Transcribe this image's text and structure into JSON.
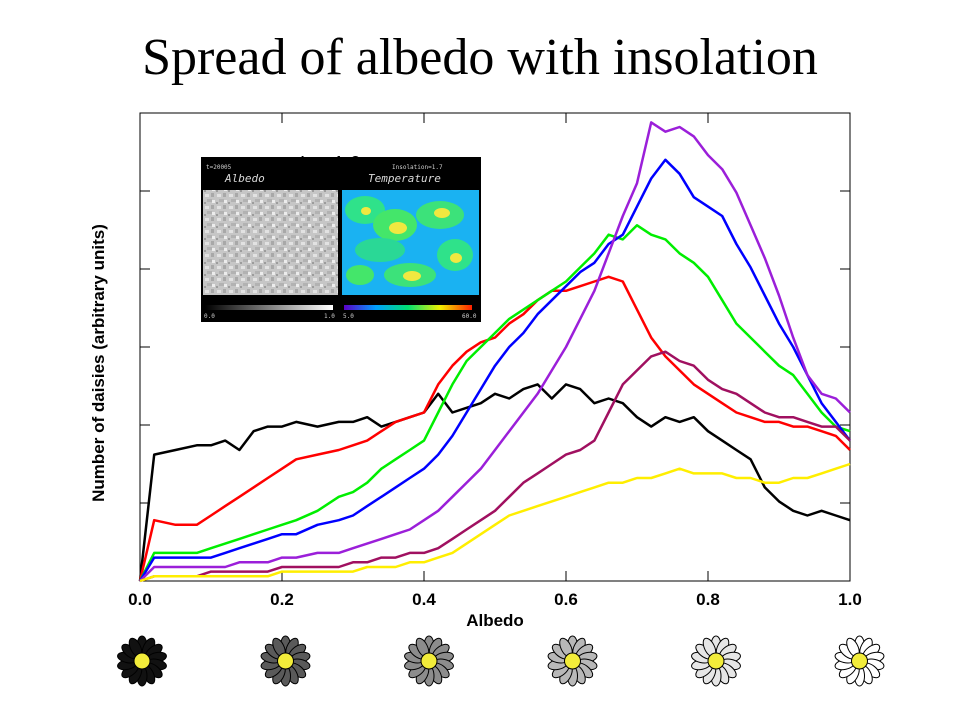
{
  "slide": {
    "title": "Spread of albedo with insolation"
  },
  "inset": {
    "left_top_label": "t=20005",
    "left_title": "Albedo",
    "right_top_label": "Insolation=1.7",
    "right_title": "Temperature",
    "left_scale": [
      "0.0",
      "1.0"
    ],
    "right_scale": [
      "5.0",
      "60.0"
    ],
    "behind_text": "L = 1.0"
  },
  "daisies": {
    "count": 6,
    "petal_colors": [
      "#111111",
      "#5a5a5a",
      "#8c8c8c",
      "#b8b8b8",
      "#e6e6e6",
      "#ffffff"
    ],
    "center_color": "#f2ec3a"
  },
  "chart_data": {
    "type": "line",
    "title": "",
    "xlabel": "Albedo",
    "ylabel": "Number of daisies (arbitrary units)",
    "xlim": [
      0.0,
      1.0
    ],
    "ylim": [
      0,
      100
    ],
    "xticks": [
      "0.0",
      "0.2",
      "0.4",
      "0.6",
      "0.8",
      "1.0"
    ],
    "grid": false,
    "series": [
      {
        "color": "#000000",
        "x": [
          0,
          0.02,
          0.05,
          0.08,
          0.1,
          0.12,
          0.14,
          0.16,
          0.18,
          0.2,
          0.22,
          0.25,
          0.28,
          0.3,
          0.32,
          0.34,
          0.36,
          0.38,
          0.4,
          0.42,
          0.44,
          0.46,
          0.48,
          0.5,
          0.52,
          0.54,
          0.56,
          0.58,
          0.6,
          0.62,
          0.64,
          0.66,
          0.68,
          0.7,
          0.72,
          0.74,
          0.76,
          0.78,
          0.8,
          0.82,
          0.84,
          0.86,
          0.88,
          0.9,
          0.92,
          0.94,
          0.96,
          0.98,
          1.0
        ],
        "y": [
          0,
          27,
          28,
          29,
          29,
          30,
          28,
          32,
          33,
          33,
          34,
          33,
          34,
          34,
          35,
          33,
          34,
          35,
          36,
          40,
          36,
          37,
          38,
          40,
          39,
          41,
          42,
          39,
          42,
          41,
          38,
          39,
          38,
          35,
          33,
          35,
          34,
          35,
          32,
          30,
          28,
          26,
          20,
          17,
          15,
          14,
          15,
          14,
          13
        ]
      },
      {
        "color": "#ff0000",
        "x": [
          0,
          0.02,
          0.05,
          0.08,
          0.1,
          0.12,
          0.14,
          0.16,
          0.18,
          0.2,
          0.22,
          0.25,
          0.28,
          0.3,
          0.32,
          0.34,
          0.36,
          0.38,
          0.4,
          0.42,
          0.44,
          0.46,
          0.48,
          0.5,
          0.52,
          0.54,
          0.56,
          0.58,
          0.6,
          0.62,
          0.64,
          0.66,
          0.68,
          0.7,
          0.72,
          0.74,
          0.76,
          0.78,
          0.8,
          0.82,
          0.84,
          0.86,
          0.88,
          0.9,
          0.92,
          0.94,
          0.96,
          0.98,
          1.0
        ],
        "y": [
          0,
          13,
          12,
          12,
          14,
          16,
          18,
          20,
          22,
          24,
          26,
          27,
          28,
          29,
          30,
          32,
          34,
          35,
          36,
          42,
          46,
          49,
          51,
          52,
          55,
          57,
          60,
          62,
          62,
          63,
          64,
          65,
          64,
          58,
          52,
          48,
          45,
          42,
          40,
          38,
          36,
          35,
          34,
          34,
          33,
          33,
          32,
          31,
          28
        ]
      },
      {
        "color": "#00ee00",
        "x": [
          0,
          0.02,
          0.05,
          0.08,
          0.1,
          0.12,
          0.14,
          0.16,
          0.18,
          0.2,
          0.22,
          0.25,
          0.28,
          0.3,
          0.32,
          0.34,
          0.36,
          0.38,
          0.4,
          0.42,
          0.44,
          0.46,
          0.48,
          0.5,
          0.52,
          0.54,
          0.56,
          0.58,
          0.6,
          0.62,
          0.64,
          0.66,
          0.68,
          0.7,
          0.72,
          0.74,
          0.76,
          0.78,
          0.8,
          0.82,
          0.84,
          0.86,
          0.88,
          0.9,
          0.92,
          0.94,
          0.96,
          0.98,
          1.0
        ],
        "y": [
          0,
          6,
          6,
          6,
          7,
          8,
          9,
          10,
          11,
          12,
          13,
          15,
          18,
          19,
          21,
          24,
          26,
          28,
          30,
          36,
          42,
          47,
          50,
          53,
          56,
          58,
          60,
          62,
          64,
          67,
          70,
          74,
          73,
          76,
          74,
          73,
          70,
          68,
          65,
          60,
          55,
          52,
          49,
          46,
          44,
          40,
          36,
          33,
          32
        ]
      },
      {
        "color": "#0000ff",
        "x": [
          0,
          0.02,
          0.05,
          0.08,
          0.1,
          0.12,
          0.14,
          0.16,
          0.18,
          0.2,
          0.22,
          0.25,
          0.28,
          0.3,
          0.32,
          0.34,
          0.36,
          0.38,
          0.4,
          0.42,
          0.44,
          0.46,
          0.48,
          0.5,
          0.52,
          0.54,
          0.56,
          0.58,
          0.6,
          0.62,
          0.64,
          0.66,
          0.68,
          0.7,
          0.72,
          0.74,
          0.76,
          0.78,
          0.8,
          0.82,
          0.84,
          0.86,
          0.88,
          0.9,
          0.92,
          0.94,
          0.96,
          0.98,
          1.0
        ],
        "y": [
          0,
          5,
          5,
          5,
          5,
          6,
          7,
          8,
          9,
          10,
          10,
          12,
          13,
          14,
          16,
          18,
          20,
          22,
          24,
          27,
          31,
          36,
          41,
          46,
          50,
          53,
          57,
          60,
          63,
          66,
          68,
          72,
          74,
          80,
          86,
          90,
          87,
          82,
          80,
          78,
          72,
          67,
          61,
          55,
          50,
          44,
          38,
          34,
          30
        ]
      },
      {
        "color": "#9b1fd9",
        "x": [
          0,
          0.02,
          0.05,
          0.08,
          0.1,
          0.12,
          0.14,
          0.16,
          0.18,
          0.2,
          0.22,
          0.25,
          0.28,
          0.3,
          0.32,
          0.34,
          0.36,
          0.38,
          0.4,
          0.42,
          0.44,
          0.46,
          0.48,
          0.5,
          0.52,
          0.54,
          0.56,
          0.58,
          0.6,
          0.62,
          0.64,
          0.66,
          0.68,
          0.7,
          0.72,
          0.74,
          0.76,
          0.78,
          0.8,
          0.82,
          0.84,
          0.86,
          0.88,
          0.9,
          0.92,
          0.94,
          0.96,
          0.98,
          1.0
        ],
        "y": [
          0,
          3,
          3,
          3,
          3,
          3,
          4,
          4,
          4,
          5,
          5,
          6,
          6,
          7,
          8,
          9,
          10,
          11,
          13,
          15,
          18,
          21,
          24,
          28,
          32,
          36,
          40,
          45,
          50,
          56,
          62,
          70,
          78,
          85,
          98,
          96,
          97,
          95,
          91,
          88,
          83,
          76,
          69,
          61,
          52,
          44,
          40,
          39,
          36
        ]
      },
      {
        "color": "#a01060",
        "x": [
          0,
          0.02,
          0.05,
          0.08,
          0.1,
          0.12,
          0.14,
          0.16,
          0.18,
          0.2,
          0.22,
          0.25,
          0.28,
          0.3,
          0.32,
          0.34,
          0.36,
          0.38,
          0.4,
          0.42,
          0.44,
          0.46,
          0.48,
          0.5,
          0.52,
          0.54,
          0.56,
          0.58,
          0.6,
          0.62,
          0.64,
          0.66,
          0.68,
          0.7,
          0.72,
          0.74,
          0.76,
          0.78,
          0.8,
          0.82,
          0.84,
          0.86,
          0.88,
          0.9,
          0.92,
          0.94,
          0.96,
          0.98,
          1.0
        ],
        "y": [
          0,
          1,
          1,
          1,
          2,
          2,
          2,
          2,
          2,
          3,
          3,
          3,
          3,
          4,
          4,
          5,
          5,
          6,
          6,
          7,
          9,
          11,
          13,
          15,
          18,
          21,
          23,
          25,
          27,
          28,
          30,
          36,
          42,
          45,
          48,
          49,
          47,
          46,
          43,
          41,
          40,
          38,
          36,
          35,
          35,
          34,
          33,
          33,
          30
        ]
      },
      {
        "color": "#ffee00",
        "x": [
          0,
          0.02,
          0.05,
          0.08,
          0.1,
          0.12,
          0.14,
          0.16,
          0.18,
          0.2,
          0.22,
          0.25,
          0.28,
          0.3,
          0.32,
          0.34,
          0.36,
          0.38,
          0.4,
          0.42,
          0.44,
          0.46,
          0.48,
          0.5,
          0.52,
          0.54,
          0.56,
          0.58,
          0.6,
          0.62,
          0.64,
          0.66,
          0.68,
          0.7,
          0.72,
          0.74,
          0.76,
          0.78,
          0.8,
          0.82,
          0.84,
          0.86,
          0.88,
          0.9,
          0.92,
          0.94,
          0.96,
          0.98,
          1.0
        ],
        "y": [
          0,
          1,
          1,
          1,
          1,
          1,
          1,
          1,
          1,
          2,
          2,
          2,
          2,
          2,
          3,
          3,
          3,
          4,
          4,
          5,
          6,
          8,
          10,
          12,
          14,
          15,
          16,
          17,
          18,
          19,
          20,
          21,
          21,
          22,
          22,
          23,
          24,
          23,
          23,
          23,
          22,
          22,
          21,
          21,
          22,
          22,
          23,
          24,
          25
        ]
      }
    ]
  }
}
